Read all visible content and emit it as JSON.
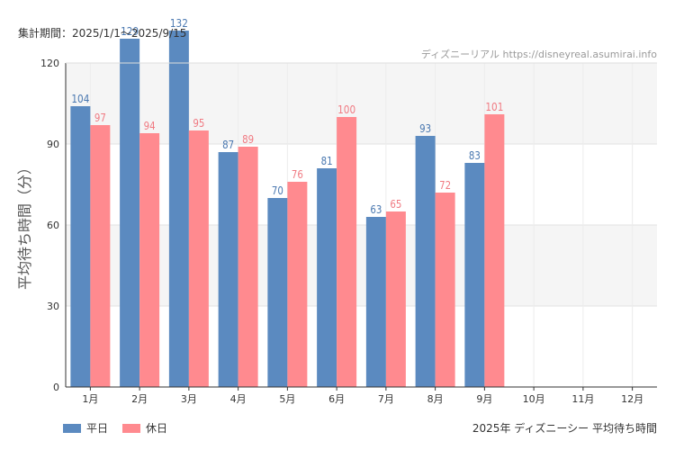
{
  "header": {
    "period_label": "集計期間：2025/1/1～2025/9/15",
    "credit": "ディズニーリアル https://disneyreal.asumirai.info"
  },
  "legend": {
    "items": [
      {
        "label": "平日",
        "color": "#5b8ac0"
      },
      {
        "label": "休日",
        "color": "#ff8a8f"
      }
    ]
  },
  "footer": {
    "caption": "2025年 ディズニーシー 平均待ち時間"
  },
  "chart_data": {
    "type": "bar",
    "title": "",
    "xlabel": "",
    "ylabel": "平均待ち時間（分）",
    "ylim": [
      0,
      120
    ],
    "yticks": [
      0,
      30,
      60,
      90,
      120
    ],
    "categories": [
      "1月",
      "2月",
      "3月",
      "4月",
      "5月",
      "6月",
      "7月",
      "8月",
      "9月",
      "10月",
      "11月",
      "12月"
    ],
    "series": [
      {
        "name": "平日",
        "color": "#5b8ac0",
        "label_color": "#4a78b0",
        "values": [
          104,
          129,
          132,
          87,
          70,
          81,
          63,
          93,
          83,
          null,
          null,
          null
        ]
      },
      {
        "name": "休日",
        "color": "#ff8a8f",
        "label_color": "#f07a82",
        "values": [
          97,
          94,
          95,
          89,
          76,
          100,
          65,
          72,
          101,
          null,
          null,
          null
        ]
      }
    ],
    "grid": true,
    "legend_position": "bottom-left"
  }
}
